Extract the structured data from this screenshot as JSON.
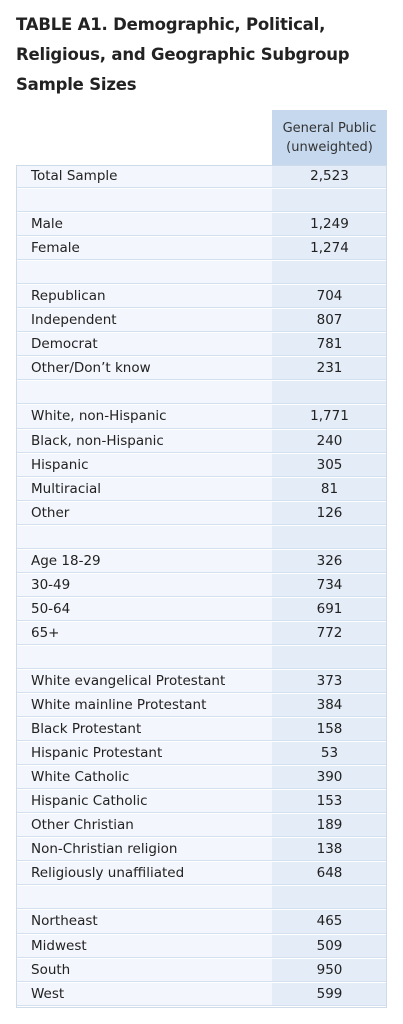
{
  "title": "TABLE A1. Demographic, Political, Religious, and Geographic Subgroup Sample Sizes",
  "column_header": {
    "line1": "General Public",
    "line2": "(unweighted)"
  },
  "rows": [
    {
      "label": "Total Sample",
      "value": "2,523"
    },
    {
      "label": "",
      "value": ""
    },
    {
      "label": "Male",
      "value": "1,249"
    },
    {
      "label": "Female",
      "value": "1,274"
    },
    {
      "label": "",
      "value": ""
    },
    {
      "label": "Republican",
      "value": "704"
    },
    {
      "label": "Independent",
      "value": "807"
    },
    {
      "label": "Democrat",
      "value": "781"
    },
    {
      "label": "Other/Don’t know",
      "value": "231"
    },
    {
      "label": "",
      "value": ""
    },
    {
      "label": "White, non-Hispanic",
      "value": "1,771"
    },
    {
      "label": "Black, non-Hispanic",
      "value": "240"
    },
    {
      "label": "Hispanic",
      "value": "305"
    },
    {
      "label": "Multiracial",
      "value": "81"
    },
    {
      "label": "Other",
      "value": "126"
    },
    {
      "label": "",
      "value": ""
    },
    {
      "label": "Age 18-29",
      "value": "326"
    },
    {
      "label": "30-49",
      "value": "734"
    },
    {
      "label": "50-64",
      "value": "691"
    },
    {
      "label": "65+",
      "value": "772"
    },
    {
      "label": "",
      "value": ""
    },
    {
      "label": "White evangelical Protestant",
      "value": "373"
    },
    {
      "label": "White mainline Protestant",
      "value": "384"
    },
    {
      "label": "Black Protestant",
      "value": "158"
    },
    {
      "label": "Hispanic Protestant",
      "value": "53"
    },
    {
      "label": "White Catholic",
      "value": "390"
    },
    {
      "label": "Hispanic Catholic",
      "value": "153"
    },
    {
      "label": "Other Christian",
      "value": "189"
    },
    {
      "label": "Non-Christian religion",
      "value": "138"
    },
    {
      "label": "Religiously unaffiliated",
      "value": "648"
    },
    {
      "label": "",
      "value": ""
    },
    {
      "label": "Northeast",
      "value": "465"
    },
    {
      "label": "Midwest",
      "value": "509"
    },
    {
      "label": "South",
      "value": "950"
    },
    {
      "label": "West",
      "value": "599"
    }
  ]
}
